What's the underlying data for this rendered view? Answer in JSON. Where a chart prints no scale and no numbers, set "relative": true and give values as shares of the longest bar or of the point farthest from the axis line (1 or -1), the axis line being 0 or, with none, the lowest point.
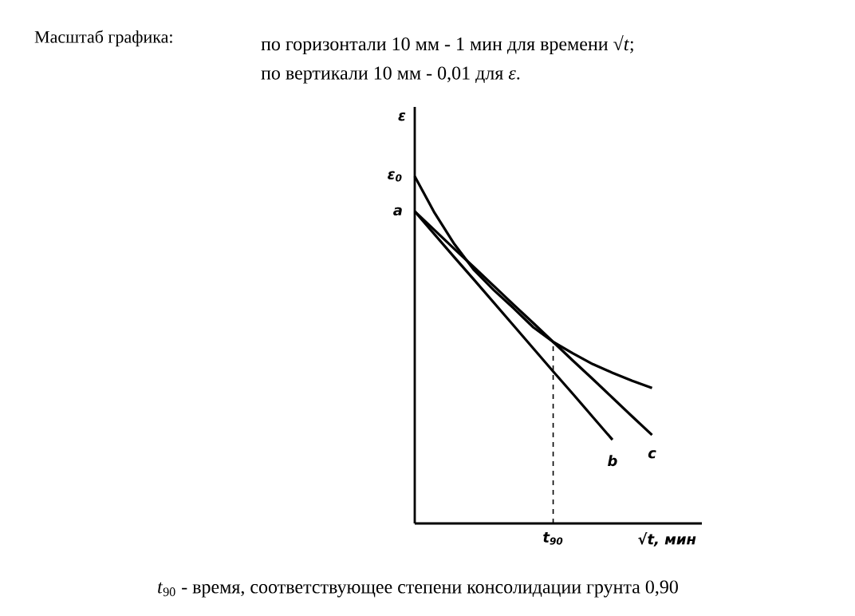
{
  "chart_data": {
    "type": "line",
    "relative": true,
    "title": "Масштаб графика:",
    "ylabel": "ε",
    "xlabel": "√*t*, мин",
    "categories": [
      null,
      null,
      null,
      null,
      null,
      null,
      null,
      null,
      null,
      null,
      null,
      null,
      null
    ],
    "series": [
      {
        "color": "#000000",
        "values": [
          1.0,
          0.895,
          0.805,
          0.73,
          0.672,
          0.62,
          0.565,
          0.523,
          0.49,
          0.459,
          0.434,
          0.411,
          0.39
        ]
      },
      {
        "name": "b",
        "color": "#000000",
        "values": [
          0.899,
          0.833,
          0.767,
          0.702,
          0.636,
          0.57,
          0.504,
          0.438,
          0.373,
          0.307,
          0.241,
          null,
          null
        ]
      },
      {
        "name": "c",
        "color": "#000000",
        "values": [
          0.899,
          0.845,
          0.791,
          0.738,
          0.684,
          0.63,
          0.577,
          0.523,
          0.469,
          0.416,
          0.362,
          0.308,
          0.255
        ]
      }
    ],
    "annotations": [
      "по горизонтали 10 мм - 1 мин для времени √*t*;",
      "по вертикали 10 мм - 0,01 для *ε*.",
      "ε$_{0}$",
      "a",
      "*t*$_{90}$",
      "*t*$_{90}$ - время, соответствующее степени консолидации грунта 0,90"
    ]
  }
}
